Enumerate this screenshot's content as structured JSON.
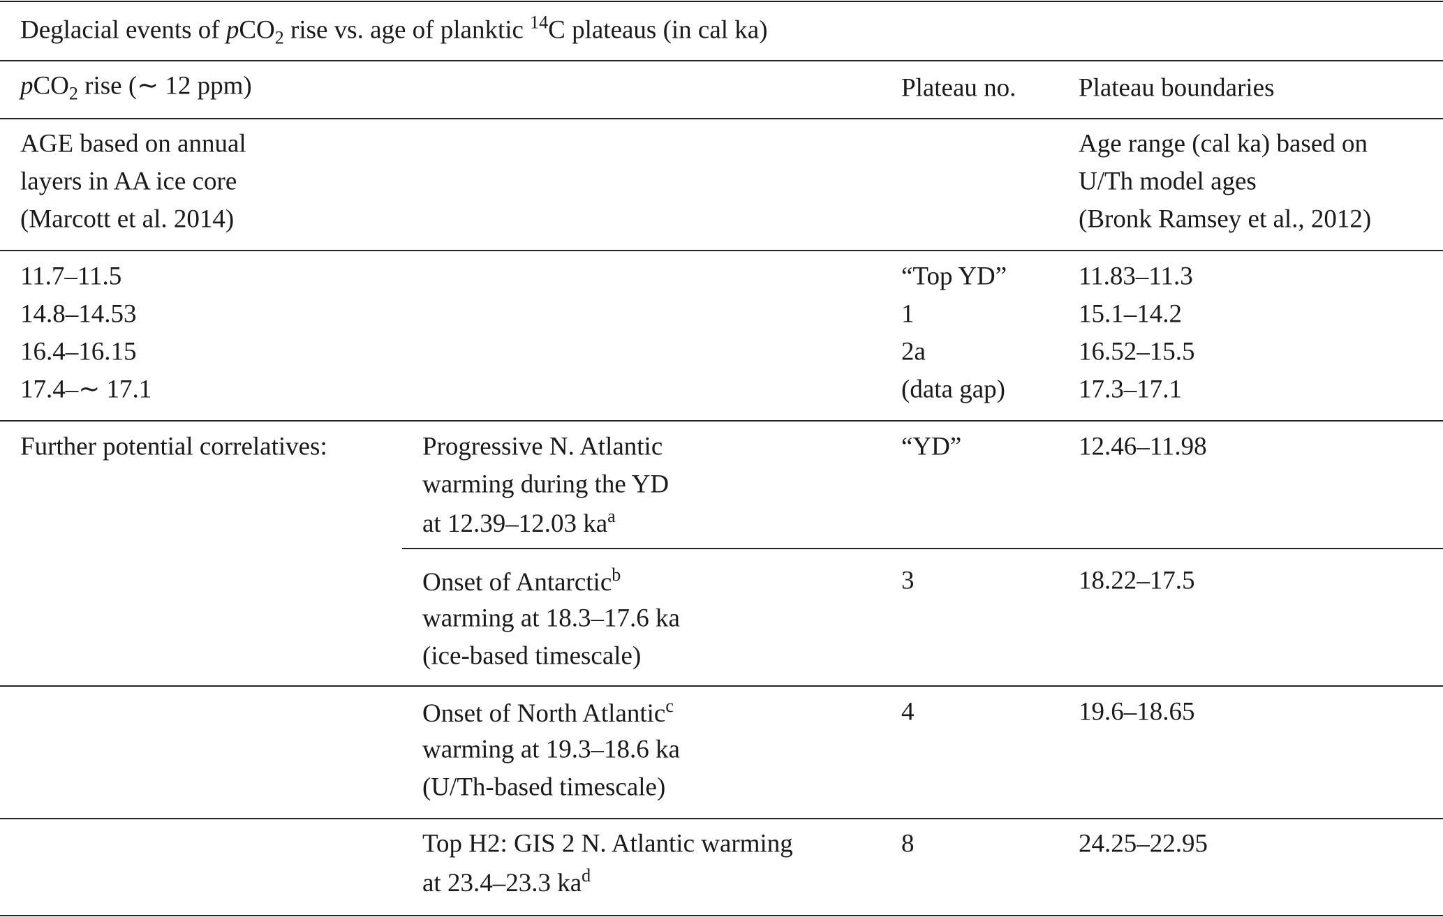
{
  "caption": [
    "Deglacial events of ",
    "p",
    "CO",
    "2",
    " rise vs. age of planktic ",
    "14",
    "C plateaus (in cal ka)"
  ],
  "header": {
    "col1": [
      "p",
      "CO",
      "2",
      " rise (∼ 12 ppm)"
    ],
    "plateau_no": "Plateau no.",
    "plateau_boundaries": "Plateau boundaries"
  },
  "subheader": {
    "col1": [
      "AGE based on annual",
      "layers in AA ice core",
      "(Marcott et al. 2014)"
    ],
    "col4": [
      "Age range (cal ka) based on",
      "U/Th model ages",
      "(Bronk Ramsey et al., 2012)"
    ]
  },
  "main_rows": [
    [
      "11.7–11.5",
      "“Top YD”",
      "11.83–11.3"
    ],
    [
      "14.8–14.53",
      "1",
      "15.1–14.2"
    ],
    [
      "16.4–16.15",
      "2a",
      "16.52–15.5"
    ],
    [
      "17.4–∼ 17.1",
      "(data gap)",
      "17.3–17.1"
    ]
  ],
  "further_label": "Further potential correlatives:",
  "further_rows": [
    {
      "event": [
        [
          "Progressive N. Atlantic"
        ],
        [
          "warming during the YD"
        ],
        [
          "at 12.39–12.03 ka",
          "a"
        ]
      ],
      "plateau": "“YD”",
      "boundaries": "12.46–11.98"
    },
    {
      "event": [
        [
          "Onset of Antarctic",
          "b"
        ],
        [
          "warming at 18.3–17.6 ka"
        ],
        [
          "(ice-based timescale)"
        ]
      ],
      "plateau": "3",
      "boundaries": "18.22–17.5"
    },
    {
      "event": [
        [
          "Onset of North Atlantic",
          "c"
        ],
        [
          "warming at 19.3–18.6 ka"
        ],
        [
          "(U/Th-based timescale)"
        ]
      ],
      "plateau": "4",
      "boundaries": "19.6–18.65"
    },
    {
      "event": [
        [
          "Top H2: GIS 2 N. Atlantic warming"
        ],
        [
          "at 23.4–23.3 ka",
          "d"
        ]
      ],
      "plateau": "8",
      "boundaries": "24.25–22.95"
    }
  ]
}
